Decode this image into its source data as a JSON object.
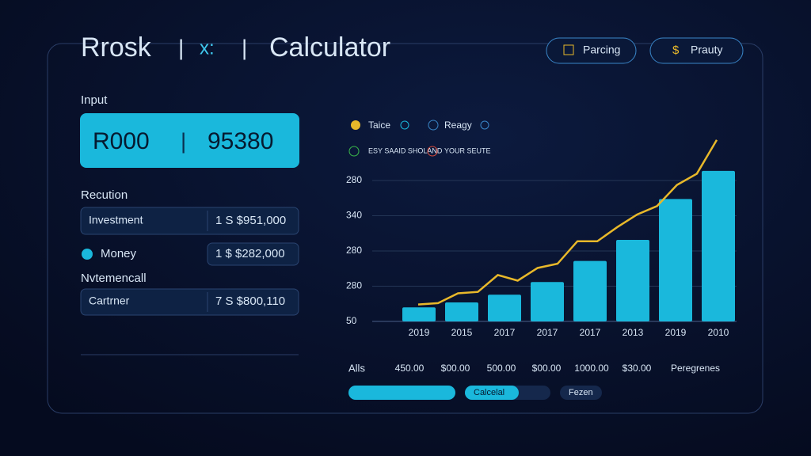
{
  "header": {
    "title": "Rrosk",
    "symbol": "x:",
    "subtitle": "Calculator",
    "buttons": [
      "Parcing",
      "Prauty"
    ]
  },
  "input": {
    "label": "Input",
    "left": "R000",
    "right": "95380"
  },
  "results": {
    "label": "Recution",
    "rows": [
      {
        "name": "Investment",
        "value": "1 S $951,000"
      },
      {
        "name": "Money",
        "value": "1 $ $282,000"
      }
    ]
  },
  "section2": {
    "label": "Nvtemencall",
    "rows": [
      {
        "name": "Cartrner",
        "value": "7 S $800,110"
      }
    ]
  },
  "chart": {
    "type": "bar",
    "legend": [
      "Taice",
      "Reagy",
      "ESY SAAID SHOLAND",
      "YOUR SEUTE"
    ],
    "y_axis_labels": [
      "280",
      "340",
      "280",
      "280",
      "50"
    ],
    "categories": [
      "2019",
      "2015",
      "2017",
      "2017",
      "2017",
      "2013",
      "2019",
      "2010"
    ],
    "values": [
      10,
      13.5,
      19,
      28,
      43,
      58,
      87,
      107
    ],
    "color": "#1ab8dc",
    "line": {
      "color": "#e8b82a",
      "values": [
        12,
        13,
        20,
        21,
        33,
        29,
        38,
        41,
        57,
        57,
        67,
        76,
        82,
        97,
        105,
        129
      ]
    },
    "ylim": [
      0,
      130
    ]
  },
  "footer": {
    "label": "Alls",
    "values": [
      "450.00",
      "$00.00",
      "500.00",
      "$00.00",
      "1000.00",
      "$30.00",
      "Peregrenes"
    ],
    "buttons": [
      "Calcelal",
      "Fezen"
    ]
  }
}
